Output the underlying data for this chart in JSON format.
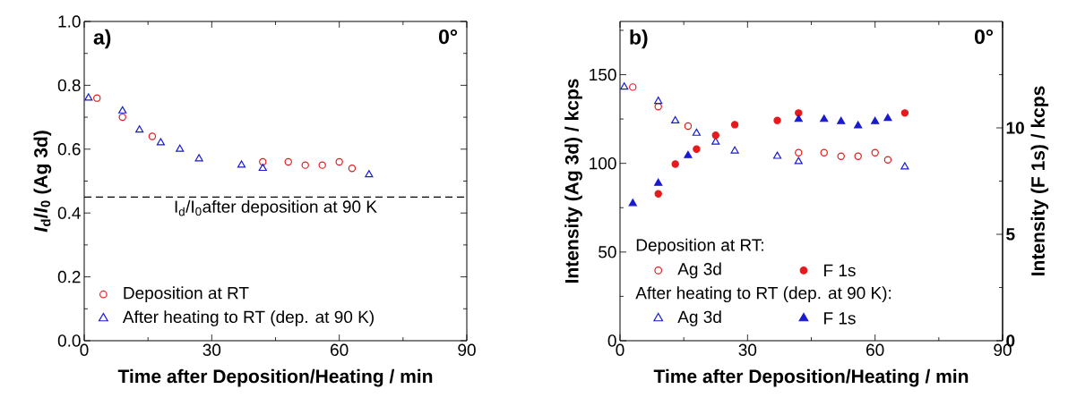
{
  "chart_data": [
    {
      "type": "scatter",
      "xlabel": "Time after Deposition/Heating / min",
      "ylabel": "*I*$_{d}$/*I*$_{0}$ (Ag 3d)",
      "annotations": [
        "a)",
        "0°"
      ],
      "xlim": [
        0,
        90
      ],
      "xticks": [
        0,
        {
          "value": 15,
          "label": null
        },
        30,
        {
          "value": 45,
          "label": null
        },
        60,
        {
          "value": 75,
          "label": null
        },
        90
      ],
      "ylim": [
        0,
        1
      ],
      "yticks": [
        {
          "value": 0,
          "label": "0.0"
        },
        {
          "value": 0.1,
          "label": null
        },
        {
          "value": 0.2,
          "label": "0.2"
        },
        {
          "value": 0.3,
          "label": null
        },
        {
          "value": 0.4,
          "label": "0.4"
        },
        {
          "value": 0.5,
          "label": null
        },
        {
          "value": 0.6,
          "label": "0.6"
        },
        {
          "value": 0.7,
          "label": null
        },
        {
          "value": 0.8,
          "label": "0.8"
        },
        {
          "value": 0.9,
          "label": null
        },
        {
          "value": 1,
          "label": "1.0"
        }
      ],
      "legend": "bottom left",
      "ref_lines": [
        {
          "axis": "y",
          "value": 0.45,
          "label": "I$_{d}$/I$_{0}$after deposition at 90 K",
          "color": "#000000",
          "line_style": "dashed"
        }
      ],
      "series": [
        {
          "name": "Deposition at RT",
          "color": "#e41a1c",
          "marker": "circle",
          "x": [
            3,
            9,
            16,
            42,
            48,
            52,
            56,
            60,
            63
          ],
          "values": [
            0.76,
            0.7,
            0.64,
            0.56,
            0.56,
            0.55,
            0.55,
            0.56,
            0.54
          ]
        },
        {
          "name": "After heating to RT (dep. at 90 K)",
          "color": "#1a1ad0",
          "marker": "triangle",
          "x": [
            1,
            9,
            13,
            18,
            22.5,
            27,
            37,
            42,
            67
          ],
          "values": [
            0.76,
            0.72,
            0.66,
            0.62,
            0.6,
            0.57,
            0.55,
            0.54,
            0.52
          ]
        }
      ]
    },
    {
      "type": "scatter",
      "xlabel": "Time after Deposition/Heating / min",
      "ylabel": "Intensity (Ag 3d) / kcps",
      "y2label": "Intensity (F 1s) / kcps",
      "annotations": [
        "b)",
        "0°",
        "Deposition at RT:",
        "After heating to RT (dep. at 90 K):"
      ],
      "xlim": [
        0,
        90
      ],
      "xticks": [
        0,
        {
          "value": 15,
          "label": null
        },
        30,
        {
          "value": 45,
          "label": null
        },
        60,
        {
          "value": 75,
          "label": null
        },
        90
      ],
      "ylim": [
        0,
        180
      ],
      "yticks": [
        0,
        {
          "value": 25,
          "label": null
        },
        50,
        {
          "value": 75,
          "label": null
        },
        100,
        {
          "value": 125,
          "label": null
        },
        150,
        {
          "value": 175,
          "label": null
        }
      ],
      "y2lim": [
        0,
        15
      ],
      "y2ticks": [
        0,
        {
          "value": 2.5,
          "label": null
        },
        5,
        {
          "value": 7.5,
          "label": null
        },
        10,
        {
          "value": 12.5,
          "label": null
        }
      ],
      "legend": "bottom left",
      "series": [
        {
          "name": "Ag 3d",
          "color": "#e41a1c",
          "marker": "circle",
          "x": [
            3,
            9,
            16,
            42,
            48,
            52,
            56,
            60,
            63
          ],
          "values": [
            143,
            132,
            121,
            106,
            106,
            104,
            104,
            106,
            102
          ]
        },
        {
          "name": "F 1s",
          "color": "#e41a1c",
          "marker": "circle",
          "axis": "y2",
          "x": [
            9,
            13,
            18,
            22.5,
            27,
            37,
            42,
            67
          ],
          "values": [
            6.9,
            8.3,
            9.0,
            9.65,
            10.15,
            10.35,
            10.7,
            10.7
          ]
        },
        {
          "name": "Ag 3d",
          "color": "#1a1ad0",
          "marker": "triangle",
          "x": [
            1,
            9,
            13,
            18,
            22.5,
            27,
            37,
            42,
            67
          ],
          "values": [
            143,
            135,
            124,
            117,
            112,
            107,
            104,
            101,
            98
          ]
        },
        {
          "name": "F 1s",
          "color": "#1a1ad0",
          "marker": "triangle",
          "axis": "y2",
          "x": [
            3,
            9,
            16,
            42,
            48,
            52,
            56,
            60,
            63
          ],
          "values": [
            6.45,
            7.4,
            8.7,
            10.4,
            10.4,
            10.3,
            10.1,
            10.3,
            10.45
          ]
        }
      ]
    }
  ]
}
